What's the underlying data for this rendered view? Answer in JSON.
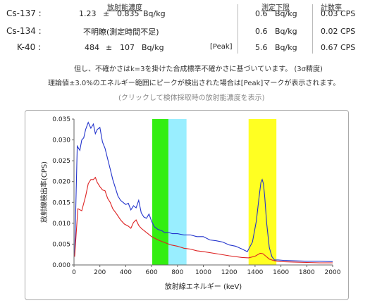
{
  "table": {
    "headers": {
      "concentration": "放射能濃度",
      "limit": "測定下限",
      "count_rate": "計数率"
    },
    "rows": [
      {
        "nuclide": "Cs-137 :",
        "value": "1.23",
        "pm": "±",
        "error": "0.835",
        "unit": "Bq/kg",
        "status": "",
        "peak": "",
        "limit_value": "0.6",
        "limit_unit": "Bq/kg",
        "count_rate": "0.03 CPS"
      },
      {
        "nuclide": "Cs-134 :",
        "value": "",
        "pm": "",
        "error": "",
        "unit": "",
        "status": "不明瞭(測定時間不足)",
        "peak": "",
        "limit_value": "0.6",
        "limit_unit": "Bq/kg",
        "count_rate": "0.02 CPS"
      },
      {
        "nuclide": "K-40 :",
        "value": "484",
        "pm": "±",
        "error": "107",
        "unit": "Bq/kg",
        "status": "",
        "peak": "[Peak]",
        "limit_value": "5.6",
        "limit_unit": "Bq/kg",
        "count_rate": "0.67 CPS"
      }
    ]
  },
  "notes": {
    "line1": "但し、不確かさはk=3を掛けた合成標準不確かさに基づいています。 (3σ精度)",
    "line2": "理論値±3.0%のエネルギー範囲にピークが検出された場合は[Peak]マークが表示されます。",
    "link": "(クリックして検体採取時の放射能濃度を表示)"
  },
  "colors": {
    "series1": "#2233cc",
    "series2": "#dd2222",
    "green_band": "#33ee11",
    "cyan_band": "#99eeff",
    "yellow_band": "#ffff22"
  },
  "chart_data": {
    "type": "line",
    "xlabel": "放射線エネルギー (keV)",
    "ylabel": "放射線検出率(CPS)",
    "xlim": [
      0,
      2000
    ],
    "ylim": [
      0,
      0.035
    ],
    "xticks": [
      "0",
      "200",
      "400",
      "600",
      "800",
      "1000",
      "1200",
      "1400",
      "1600",
      "1800",
      "2000"
    ],
    "yticks": [
      "0.000",
      "0.005",
      "0.010",
      "0.015",
      "0.020",
      "0.025",
      "0.030",
      "0.035"
    ],
    "bands": [
      {
        "color": "green",
        "from": 605,
        "to": 730
      },
      {
        "color": "cyan",
        "from": 730,
        "to": 870
      },
      {
        "color": "yellow",
        "from": 1350,
        "to": 1565
      }
    ],
    "series": [
      {
        "color": "blue",
        "x": [
          5,
          25,
          45,
          60,
          75,
          90,
          110,
          130,
          150,
          165,
          180,
          200,
          220,
          240,
          260,
          280,
          300,
          320,
          340,
          360,
          380,
          400,
          420,
          440,
          460,
          480,
          500,
          520,
          540,
          560,
          580,
          600,
          620,
          650,
          680,
          700,
          730,
          760,
          800,
          850,
          900,
          950,
          1000,
          1050,
          1100,
          1150,
          1200,
          1250,
          1300,
          1340,
          1380,
          1410,
          1430,
          1445,
          1455,
          1465,
          1475,
          1490,
          1510,
          1530,
          1550,
          1580,
          1620,
          1700,
          1800,
          1900,
          2000
        ],
        "y": [
          0.002,
          0.0285,
          0.0275,
          0.03,
          0.0305,
          0.0325,
          0.0342,
          0.0328,
          0.0338,
          0.0315,
          0.0325,
          0.033,
          0.0295,
          0.028,
          0.0255,
          0.023,
          0.0205,
          0.0185,
          0.0165,
          0.0155,
          0.015,
          0.0145,
          0.0148,
          0.0132,
          0.0142,
          0.0137,
          0.0155,
          0.0125,
          0.0115,
          0.0112,
          0.0122,
          0.0105,
          0.0092,
          0.0085,
          0.0082,
          0.0078,
          0.0078,
          0.0075,
          0.0075,
          0.0072,
          0.0072,
          0.0068,
          0.0068,
          0.006,
          0.0058,
          0.0055,
          0.0048,
          0.0045,
          0.0038,
          0.0032,
          0.0055,
          0.0105,
          0.016,
          0.0198,
          0.0205,
          0.0195,
          0.0162,
          0.01,
          0.0042,
          0.002,
          0.0012,
          0.0012,
          0.0011,
          0.001,
          0.0009,
          0.0009,
          0.0008
        ]
      },
      {
        "color": "red",
        "x": [
          5,
          30,
          60,
          90,
          110,
          130,
          150,
          165,
          180,
          200,
          220,
          240,
          260,
          280,
          300,
          330,
          360,
          390,
          420,
          440,
          460,
          480,
          500,
          520,
          560,
          600,
          650,
          700,
          750,
          800,
          850,
          900,
          950,
          1000,
          1100,
          1200,
          1300,
          1350,
          1400,
          1440,
          1460,
          1480,
          1510,
          1550,
          1600,
          1700,
          1800,
          1900,
          2000
        ],
        "y": [
          0.002,
          0.0135,
          0.013,
          0.0165,
          0.0195,
          0.0205,
          0.0205,
          0.021,
          0.0198,
          0.0188,
          0.018,
          0.0178,
          0.016,
          0.015,
          0.0135,
          0.0122,
          0.0108,
          0.0098,
          0.0093,
          0.0088,
          0.0102,
          0.0108,
          0.0095,
          0.0088,
          0.0078,
          0.0068,
          0.006,
          0.0054,
          0.0048,
          0.0045,
          0.004,
          0.0038,
          0.0034,
          0.0032,
          0.0027,
          0.0022,
          0.0018,
          0.0017,
          0.0021,
          0.0028,
          0.0027,
          0.0022,
          0.0014,
          0.001,
          0.0008,
          0.0007,
          0.0006,
          0.0005,
          0.0005
        ]
      }
    ]
  }
}
